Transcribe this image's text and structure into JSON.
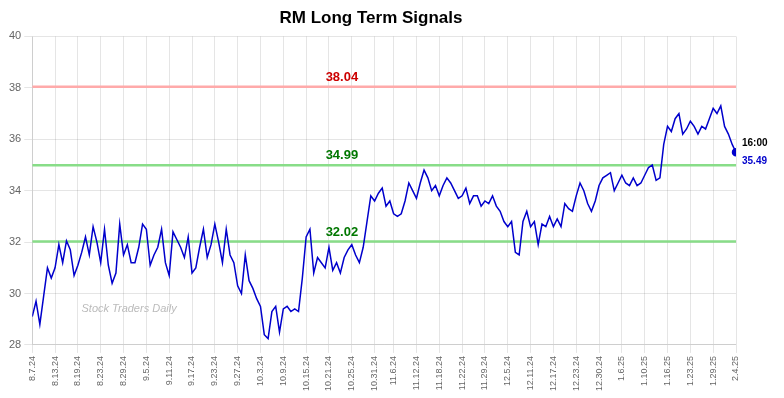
{
  "chart_data": {
    "type": "line",
    "title": "RM Long Term Signals",
    "categories": [
      "8.7.24",
      null,
      null,
      null,
      null,
      null,
      "8.13.24",
      null,
      null,
      null,
      null,
      null,
      "8.19.24",
      null,
      null,
      null,
      null,
      null,
      "8.23.24",
      null,
      null,
      null,
      null,
      null,
      "8.29.24",
      null,
      null,
      null,
      null,
      null,
      "9.5.24",
      null,
      null,
      null,
      null,
      null,
      "9.11.24",
      null,
      null,
      null,
      null,
      null,
      "9.17.24",
      null,
      null,
      null,
      null,
      null,
      "9.23.24",
      null,
      null,
      null,
      null,
      null,
      "9.27.24",
      null,
      null,
      null,
      null,
      null,
      "10.3.24",
      null,
      null,
      null,
      null,
      null,
      "10.9.24",
      null,
      null,
      null,
      null,
      null,
      "10.15.24",
      null,
      null,
      null,
      null,
      null,
      "10.21.24",
      null,
      null,
      null,
      null,
      null,
      "10.25.24",
      null,
      null,
      null,
      null,
      null,
      "10.31.24",
      null,
      null,
      null,
      null,
      "11.6.24",
      null,
      null,
      null,
      null,
      null,
      "11.12.24",
      null,
      null,
      null,
      null,
      null,
      "11.18.24",
      null,
      null,
      null,
      null,
      null,
      "11.22.24",
      null,
      null,
      null,
      null,
      null,
      "11.29.24",
      null,
      null,
      null,
      null,
      null,
      "12.5.24",
      null,
      null,
      null,
      null,
      null,
      "12.11.24",
      null,
      null,
      null,
      null,
      null,
      "12.17.24",
      null,
      null,
      null,
      null,
      null,
      "12.23.24",
      null,
      null,
      null,
      null,
      null,
      "12.30.24",
      null,
      null,
      null,
      null,
      null,
      "1.6.25",
      null,
      null,
      null,
      null,
      null,
      "1.10.25",
      null,
      null,
      null,
      null,
      null,
      "1.16.25",
      null,
      null,
      null,
      null,
      null,
      "1.23.25",
      null,
      null,
      null,
      null,
      null,
      "1.29.25",
      null,
      null,
      null,
      null,
      null,
      "2.4.25"
    ],
    "values": [
      29.1,
      29.7,
      28.8,
      29.9,
      31.0,
      30.6,
      31.0,
      31.9,
      31.2,
      32.05,
      31.7,
      30.7,
      31.1,
      31.6,
      32.2,
      31.5,
      32.6,
      32.0,
      31.2,
      32.5,
      31.1,
      30.4,
      30.8,
      32.7,
      31.5,
      31.9,
      31.2,
      31.2,
      31.8,
      32.7,
      32.5,
      31.1,
      31.5,
      31.8,
      32.5,
      31.2,
      30.7,
      32.4,
      32.1,
      31.8,
      31.4,
      32.2,
      30.8,
      31.0,
      31.8,
      32.5,
      31.4,
      31.9,
      32.7,
      32.0,
      31.2,
      32.5,
      31.5,
      31.2,
      30.3,
      30.0,
      31.5,
      30.5,
      30.2,
      29.8,
      29.5,
      28.4,
      28.25,
      29.3,
      29.5,
      28.5,
      29.4,
      29.5,
      29.3,
      29.4,
      29.3,
      30.6,
      32.2,
      32.5,
      30.8,
      31.4,
      31.2,
      31.0,
      31.8,
      30.9,
      31.2,
      30.8,
      31.4,
      31.7,
      31.9,
      31.5,
      31.2,
      31.8,
      32.8,
      33.8,
      33.6,
      33.9,
      34.1,
      33.4,
      33.6,
      33.1,
      33.0,
      33.1,
      33.6,
      34.3,
      34.0,
      33.7,
      34.3,
      34.8,
      34.5,
      34.0,
      34.2,
      33.8,
      34.2,
      34.5,
      34.3,
      34.0,
      33.7,
      33.8,
      34.1,
      33.5,
      33.8,
      33.8,
      33.4,
      33.6,
      33.5,
      33.8,
      33.4,
      33.2,
      32.8,
      32.6,
      32.8,
      31.6,
      31.5,
      32.8,
      33.2,
      32.6,
      32.8,
      31.9,
      32.7,
      32.6,
      33.0,
      32.6,
      32.9,
      32.6,
      33.5,
      33.3,
      33.2,
      33.8,
      34.3,
      34.0,
      33.5,
      33.2,
      33.6,
      34.2,
      34.5,
      34.6,
      34.7,
      34.0,
      34.3,
      34.6,
      34.3,
      34.2,
      34.5,
      34.2,
      34.3,
      34.6,
      34.9,
      35.0,
      34.4,
      34.5,
      35.8,
      36.5,
      36.3,
      36.8,
      37.0,
      36.2,
      36.4,
      36.7,
      36.5,
      36.2,
      36.5,
      36.4,
      36.8,
      37.2,
      37.0,
      37.3,
      36.5,
      36.2,
      35.8,
      35.49
    ],
    "color": "#0000cc",
    "ylim": [
      28,
      40
    ],
    "yticks": [
      28,
      30,
      32,
      34,
      36,
      38,
      40
    ],
    "grid": true,
    "reference_lines": [
      {
        "y": 38.04,
        "label": "38.04",
        "color": "#ffaaaa",
        "label_color": "#cc0000"
      },
      {
        "y": 34.99,
        "label": "34.99",
        "color": "#88dd88",
        "label_color": "#007700"
      },
      {
        "y": 32.02,
        "label": "32.02",
        "color": "#88dd88",
        "label_color": "#007700"
      }
    ],
    "last_point_labels": [
      "16:00",
      "35.49"
    ],
    "watermark": "Stock Traders Daily"
  }
}
